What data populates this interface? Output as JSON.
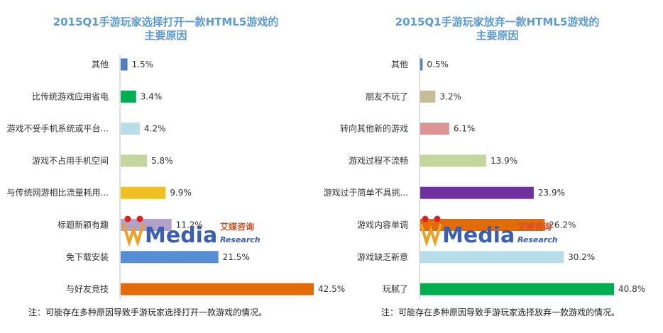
{
  "chart_data": [
    {
      "type": "bar",
      "orientation": "horizontal",
      "title_lines": [
        "2015Q1手游玩家选择打开一款HTML5游戏的",
        "主要原因"
      ],
      "categories": [
        "其他",
        "比传统游戏应用省电",
        "游戏不受手机系统或平台...",
        "游戏不占用手机空间",
        "与传统网游相比流量耗用...",
        "标题新颖有趣",
        "免下载安装",
        "与好友竞技"
      ],
      "values": [
        1.5,
        3.4,
        4.2,
        5.8,
        9.9,
        11.2,
        21.5,
        42.5
      ],
      "value_labels": [
        "1.5%",
        "3.4%",
        "4.2%",
        "5.8%",
        "9.9%",
        "11.2%",
        "21.5%",
        "42.5%"
      ],
      "colors": [
        "#4f81bd",
        "#00b050",
        "#b7dee8",
        "#c3d69b",
        "#f0c020",
        "#b3a2c7",
        "#558ed5",
        "#e36c09"
      ],
      "xlim": [
        0,
        42.5
      ],
      "footnote": "注：可能存在多种原因导致手游玩家选择打开一款游戏的情况。"
    },
    {
      "type": "bar",
      "orientation": "horizontal",
      "title_lines": [
        "2015Q1手游玩家放弃一款HTML5游戏的",
        "主要原因"
      ],
      "categories": [
        "其他",
        "朋友不玩了",
        "转向其他新的游戏",
        "游戏过程不流畅",
        "游戏过于简单不具挑...",
        "游戏内容单调",
        "游戏缺乏新意",
        "玩腻了"
      ],
      "values": [
        0.5,
        3.2,
        6.1,
        13.9,
        23.9,
        26.2,
        30.2,
        40.8
      ],
      "value_labels": [
        "0.5%",
        "3.2%",
        "6.1%",
        "13.9%",
        "23.9%",
        "26.2%",
        "30.2%",
        "40.8%"
      ],
      "colors": [
        "#4f81bd",
        "#c4bd97",
        "#d99694",
        "#c3d69b",
        "#7030a0",
        "#e36c09",
        "#b7dee8",
        "#00b050"
      ],
      "xlim": [
        0,
        40.8
      ],
      "footnote": "注：可能存在多种原因导致手游玩家选择放弃一款游戏的情况。"
    }
  ],
  "watermark": {
    "logo": "Media",
    "cn": "艾媒咨询",
    "en": "Research"
  }
}
